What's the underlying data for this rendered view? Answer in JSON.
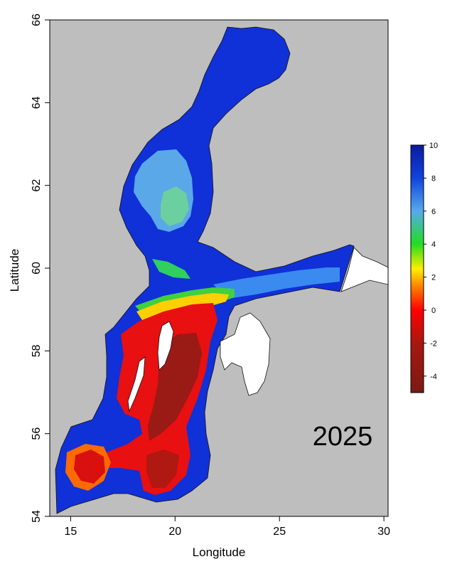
{
  "map": {
    "year_label": "2025",
    "xlabel": "Longitude",
    "ylabel": "Latitude",
    "xlim": [
      14,
      30.2
    ],
    "ylim": [
      54,
      66
    ],
    "x_ticks": [
      15,
      20,
      25,
      30
    ],
    "y_ticks": [
      54,
      56,
      58,
      60,
      62,
      64,
      66
    ],
    "background_color": "#bebebe",
    "land_color": "#ffffff",
    "colorbar": {
      "min": -5,
      "max": 10,
      "ticks": [
        -4,
        -2,
        0,
        2,
        4,
        6,
        8,
        10
      ],
      "stops": [
        {
          "value": -5,
          "color": "#7a1a14"
        },
        {
          "value": -2,
          "color": "#a8180f"
        },
        {
          "value": 0,
          "color": "#ff0000"
        },
        {
          "value": 1.5,
          "color": "#ff8800"
        },
        {
          "value": 2.5,
          "color": "#ffee00"
        },
        {
          "value": 4,
          "color": "#22dd22"
        },
        {
          "value": 6,
          "color": "#55aaee"
        },
        {
          "value": 8,
          "color": "#1144dd"
        },
        {
          "value": 10,
          "color": "#0a1aa0"
        }
      ]
    }
  }
}
